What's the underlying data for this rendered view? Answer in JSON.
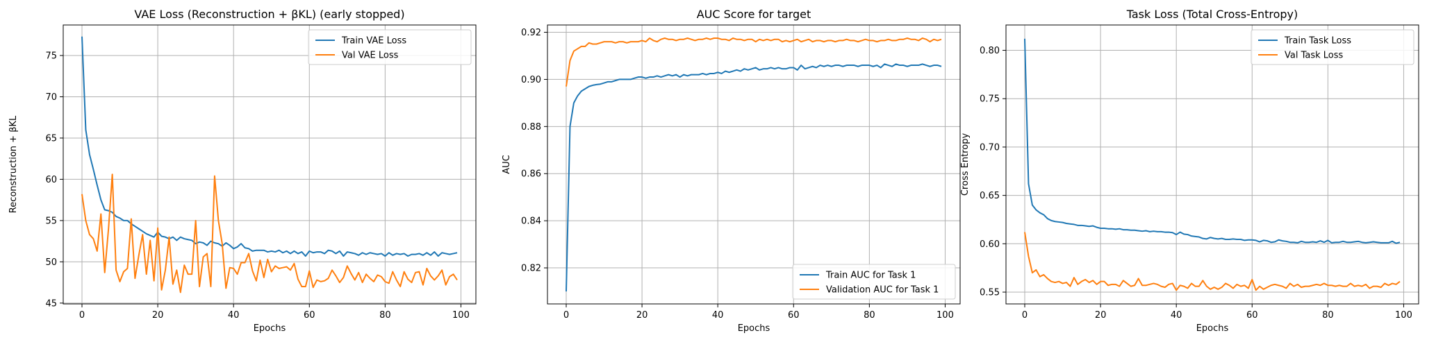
{
  "chart_data": [
    {
      "type": "line",
      "title": "VAE Loss (Reconstruction + βKL) (early stopped)",
      "xlabel": "Epochs",
      "ylabel": "Reconstruction + βKL",
      "xlim": [
        -4.95,
        103.95
      ],
      "ylim": [
        44.9,
        78.7
      ],
      "xticks": [
        0,
        20,
        40,
        60,
        80,
        100
      ],
      "yticks": [
        45,
        50,
        55,
        60,
        65,
        70,
        75
      ],
      "grid": true,
      "legend": "upper right",
      "series": [
        {
          "name": "Train VAE Loss",
          "color": "#1f77b4",
          "x_start": 0,
          "values": [
            77.3,
            66.0,
            63.0,
            61.2,
            59.3,
            57.5,
            56.3,
            56.2,
            56.0,
            55.5,
            55.3,
            55.0,
            55.0,
            54.6,
            54.3,
            54.0,
            53.7,
            53.4,
            53.2,
            53.0,
            53.6,
            53.1,
            53.0,
            52.8,
            53.0,
            52.6,
            53.0,
            52.8,
            52.7,
            52.6,
            52.2,
            52.4,
            52.3,
            52.0,
            52.5,
            52.3,
            52.2,
            51.9,
            52.3,
            52.0,
            51.6,
            51.8,
            52.2,
            51.7,
            51.6,
            51.3,
            51.4,
            51.4,
            51.4,
            51.2,
            51.3,
            51.2,
            51.4,
            51.1,
            51.3,
            51.0,
            51.3,
            51.0,
            51.2,
            50.7,
            51.3,
            51.1,
            51.2,
            51.2,
            51.0,
            51.4,
            51.3,
            51.0,
            51.3,
            50.7,
            51.2,
            51.1,
            51.0,
            50.8,
            51.1,
            50.9,
            51.1,
            51.0,
            50.9,
            51.0,
            50.7,
            51.1,
            50.8,
            51.0,
            50.9,
            51.0,
            50.7,
            50.9,
            50.9,
            51.0,
            50.8,
            51.1,
            50.8,
            51.2,
            50.7,
            51.1,
            51.0,
            50.9,
            51.0,
            51.1
          ]
        },
        {
          "name": "Val VAE Loss",
          "color": "#ff7f0e",
          "x_start": 0,
          "values": [
            58.2,
            55.0,
            53.3,
            52.8,
            51.3,
            55.8,
            48.7,
            54.0,
            60.6,
            49.0,
            47.6,
            48.8,
            49.2,
            55.2,
            48.0,
            50.8,
            53.3,
            48.5,
            52.6,
            47.7,
            54.1,
            46.6,
            49.0,
            53.0,
            47.3,
            49.0,
            46.3,
            49.6,
            48.5,
            48.5,
            55.0,
            47.0,
            50.6,
            51.0,
            47.0,
            60.4,
            55.0,
            52.2,
            46.8,
            49.3,
            49.2,
            48.5,
            49.9,
            49.9,
            51.0,
            48.9,
            47.7,
            50.2,
            48.1,
            50.3,
            48.8,
            49.5,
            49.2,
            49.3,
            49.4,
            49.0,
            49.8,
            47.9,
            47.0,
            47.0,
            48.9,
            46.9,
            47.8,
            47.6,
            47.7,
            48.0,
            49.0,
            48.3,
            47.5,
            48.1,
            49.5,
            48.6,
            47.8,
            48.7,
            47.5,
            48.5,
            48.0,
            47.6,
            48.4,
            48.2,
            47.6,
            47.4,
            48.8,
            47.8,
            47.0,
            48.8,
            47.9,
            47.5,
            48.7,
            48.8,
            47.2,
            49.2,
            48.3,
            47.8,
            48.3,
            49.0,
            47.2,
            48.2,
            48.5,
            47.8
          ]
        }
      ]
    },
    {
      "type": "line",
      "title": "AUC Score for target",
      "xlabel": "Epochs",
      "ylabel": "AUC",
      "xlim": [
        -4.95,
        103.95
      ],
      "ylim": [
        0.8047,
        0.9231
      ],
      "xticks": [
        0,
        20,
        40,
        60,
        80,
        100
      ],
      "yticks": [
        0.82,
        0.84,
        0.86,
        0.88,
        0.9,
        0.92
      ],
      "grid": true,
      "legend": "lower right",
      "series": [
        {
          "name": "Train AUC for Task 1",
          "color": "#1f77b4",
          "x_start": 0,
          "values": [
            0.81,
            0.88,
            0.89,
            0.893,
            0.895,
            0.896,
            0.897,
            0.8975,
            0.8978,
            0.898,
            0.8985,
            0.899,
            0.899,
            0.8995,
            0.9,
            0.9,
            0.9,
            0.9,
            0.9005,
            0.901,
            0.901,
            0.9005,
            0.901,
            0.901,
            0.9015,
            0.901,
            0.9015,
            0.902,
            0.9015,
            0.902,
            0.901,
            0.902,
            0.9015,
            0.902,
            0.902,
            0.902,
            0.9025,
            0.902,
            0.9025,
            0.9025,
            0.903,
            0.9025,
            0.9035,
            0.903,
            0.9035,
            0.904,
            0.9035,
            0.9045,
            0.904,
            0.9045,
            0.905,
            0.904,
            0.9045,
            0.9045,
            0.905,
            0.9045,
            0.905,
            0.9045,
            0.9045,
            0.905,
            0.905,
            0.904,
            0.906,
            0.9045,
            0.905,
            0.9055,
            0.905,
            0.906,
            0.9055,
            0.906,
            0.9055,
            0.906,
            0.906,
            0.9055,
            0.906,
            0.906,
            0.906,
            0.9055,
            0.906,
            0.906,
            0.906,
            0.9055,
            0.906,
            0.905,
            0.9065,
            0.906,
            0.9055,
            0.9065,
            0.906,
            0.906,
            0.9055,
            0.906,
            0.906,
            0.906,
            0.9065,
            0.906,
            0.9055,
            0.906,
            0.906,
            0.9055
          ]
        },
        {
          "name": "Validation AUC  for Task 1",
          "color": "#ff7f0e",
          "x_start": 0,
          "values": [
            0.897,
            0.908,
            0.912,
            0.913,
            0.914,
            0.914,
            0.9155,
            0.915,
            0.915,
            0.9155,
            0.916,
            0.916,
            0.916,
            0.9155,
            0.916,
            0.916,
            0.9155,
            0.916,
            0.916,
            0.916,
            0.9165,
            0.916,
            0.9175,
            0.9165,
            0.916,
            0.917,
            0.9175,
            0.917,
            0.917,
            0.9165,
            0.917,
            0.917,
            0.9175,
            0.917,
            0.9165,
            0.917,
            0.917,
            0.9175,
            0.917,
            0.9175,
            0.9175,
            0.917,
            0.917,
            0.9165,
            0.9175,
            0.917,
            0.917,
            0.9165,
            0.917,
            0.917,
            0.916,
            0.917,
            0.9165,
            0.917,
            0.9165,
            0.917,
            0.917,
            0.916,
            0.9165,
            0.916,
            0.9165,
            0.917,
            0.916,
            0.9165,
            0.917,
            0.916,
            0.9165,
            0.9165,
            0.916,
            0.9165,
            0.9165,
            0.916,
            0.9165,
            0.9165,
            0.917,
            0.9165,
            0.9165,
            0.916,
            0.9165,
            0.917,
            0.9165,
            0.9165,
            0.916,
            0.9165,
            0.9165,
            0.917,
            0.9165,
            0.9165,
            0.917,
            0.917,
            0.9175,
            0.917,
            0.917,
            0.9165,
            0.9175,
            0.917,
            0.916,
            0.917,
            0.9165,
            0.917
          ]
        }
      ]
    },
    {
      "type": "line",
      "title": "Task Loss (Total Cross-Entropy)",
      "xlabel": "Epochs",
      "ylabel": "Cross Entropy",
      "xlim": [
        -4.95,
        103.95
      ],
      "ylim": [
        0.5378,
        0.8262
      ],
      "xticks": [
        0,
        20,
        40,
        60,
        80,
        100
      ],
      "yticks": [
        0.55,
        0.6,
        0.65,
        0.7,
        0.75,
        0.8
      ],
      "grid": true,
      "legend": "upper right",
      "series": [
        {
          "name": "Train Task Loss",
          "color": "#1f77b4",
          "x_start": 0,
          "values": [
            0.812,
            0.662,
            0.64,
            0.635,
            0.632,
            0.63,
            0.626,
            0.624,
            0.623,
            0.6225,
            0.622,
            0.621,
            0.6205,
            0.62,
            0.619,
            0.619,
            0.6185,
            0.618,
            0.6185,
            0.617,
            0.616,
            0.616,
            0.6155,
            0.6155,
            0.615,
            0.6155,
            0.6145,
            0.6145,
            0.614,
            0.614,
            0.6135,
            0.613,
            0.6135,
            0.6125,
            0.613,
            0.6125,
            0.6125,
            0.612,
            0.612,
            0.6115,
            0.6095,
            0.612,
            0.61,
            0.6095,
            0.608,
            0.6075,
            0.607,
            0.6055,
            0.605,
            0.6065,
            0.6055,
            0.605,
            0.6055,
            0.6045,
            0.6045,
            0.605,
            0.6045,
            0.6045,
            0.6035,
            0.604,
            0.604,
            0.6035,
            0.602,
            0.6035,
            0.603,
            0.6015,
            0.602,
            0.604,
            0.603,
            0.6025,
            0.6015,
            0.6015,
            0.601,
            0.6025,
            0.6015,
            0.6015,
            0.602,
            0.6015,
            0.603,
            0.6015,
            0.6035,
            0.601,
            0.6015,
            0.6015,
            0.6025,
            0.6015,
            0.6015,
            0.602,
            0.6025,
            0.6015,
            0.601,
            0.6015,
            0.602,
            0.6015,
            0.601,
            0.601,
            0.601,
            0.6025,
            0.6005,
            0.6015
          ]
        },
        {
          "name": "Val Task Loss",
          "color": "#ff7f0e",
          "x_start": 0,
          "values": [
            0.612,
            0.587,
            0.57,
            0.573,
            0.566,
            0.568,
            0.564,
            0.561,
            0.56,
            0.561,
            0.559,
            0.56,
            0.556,
            0.565,
            0.558,
            0.561,
            0.563,
            0.56,
            0.562,
            0.558,
            0.561,
            0.561,
            0.557,
            0.558,
            0.558,
            0.556,
            0.562,
            0.559,
            0.556,
            0.557,
            0.564,
            0.557,
            0.557,
            0.558,
            0.559,
            0.558,
            0.556,
            0.555,
            0.558,
            0.559,
            0.552,
            0.557,
            0.556,
            0.554,
            0.559,
            0.556,
            0.556,
            0.562,
            0.556,
            0.553,
            0.555,
            0.553,
            0.555,
            0.559,
            0.557,
            0.554,
            0.558,
            0.556,
            0.557,
            0.554,
            0.563,
            0.552,
            0.556,
            0.553,
            0.555,
            0.557,
            0.558,
            0.557,
            0.556,
            0.554,
            0.559,
            0.556,
            0.558,
            0.555,
            0.556,
            0.556,
            0.557,
            0.558,
            0.557,
            0.559,
            0.557,
            0.557,
            0.556,
            0.557,
            0.556,
            0.556,
            0.559,
            0.556,
            0.557,
            0.556,
            0.558,
            0.554,
            0.556,
            0.556,
            0.555,
            0.559,
            0.557,
            0.559,
            0.558,
            0.561
          ]
        }
      ]
    }
  ]
}
